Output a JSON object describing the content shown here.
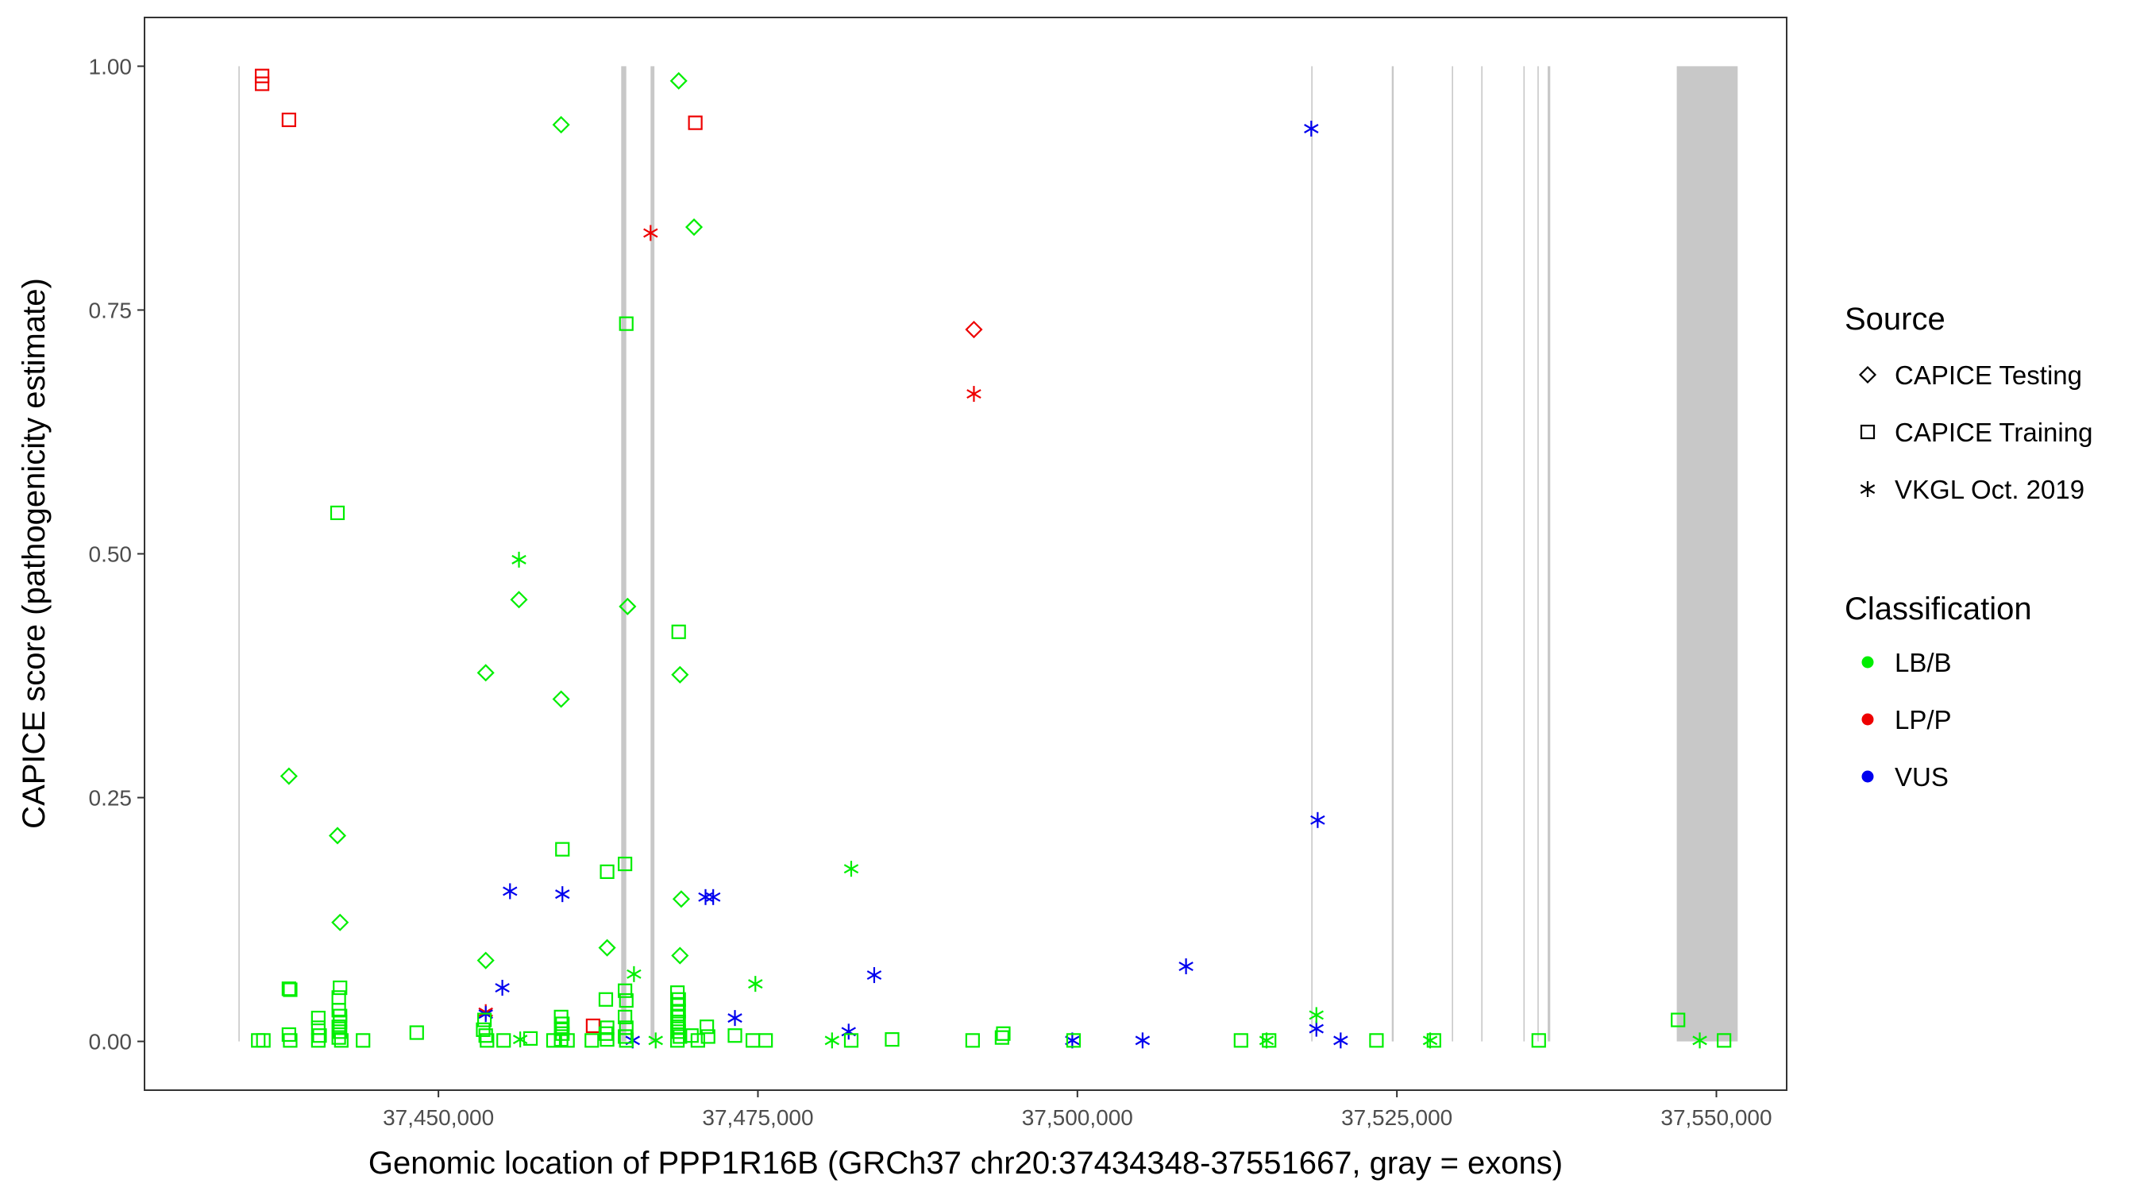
{
  "chart_data": {
    "type": "scatter",
    "xlabel": "Genomic location of PPP1R16B (GRCh37 chr20:37434348-37551667, gray = exons)",
    "ylabel": "CAPICE score (pathogenicity estimate)",
    "xlim": [
      37427000,
      37555500
    ],
    "ylim": [
      -0.05,
      1.05
    ],
    "x_ticks": [
      37450000,
      37475000,
      37500000,
      37525000,
      37550000
    ],
    "x_tick_labels": [
      "37,450,000",
      "37,475,000",
      "37,500,000",
      "37,525,000",
      "37,550,000"
    ],
    "y_ticks": [
      0,
      0.25,
      0.5,
      0.75,
      1.0
    ],
    "y_tick_labels": [
      "0.00",
      "0.25",
      "0.50",
      "0.75",
      "1.00"
    ],
    "grid": false,
    "exons": [
      [
        37434348,
        37434450
      ],
      [
        37464300,
        37464700
      ],
      [
        37466600,
        37466900
      ],
      [
        37518300,
        37518400
      ],
      [
        37524600,
        37524750
      ],
      [
        37529300,
        37529400
      ],
      [
        37531600,
        37531700
      ],
      [
        37534900,
        37535000
      ],
      [
        37536000,
        37536100
      ],
      [
        37536800,
        37537000
      ],
      [
        37546900,
        37551667
      ]
    ],
    "legend": {
      "source_title": "Source",
      "classification_title": "Classification",
      "sources": [
        {
          "key": "testing",
          "label": "CAPICE Testing",
          "shape": "diamond"
        },
        {
          "key": "training",
          "label": "CAPICE Training",
          "shape": "square"
        },
        {
          "key": "vkgl",
          "label": "VKGL Oct. 2019",
          "shape": "asterisk"
        }
      ],
      "classes": [
        {
          "key": "LB/B",
          "label": "LB/B",
          "color": "#00ee00"
        },
        {
          "key": "LP/P",
          "label": "LP/P",
          "color": "#ee0000"
        },
        {
          "key": "VUS",
          "label": "VUS",
          "color": "#0000ee"
        }
      ],
      "position": "right"
    },
    "series": [
      {
        "source": "training",
        "class": "LP/P",
        "points": [
          [
            37436200,
            0.99
          ],
          [
            37436200,
            0.982
          ],
          [
            37438300,
            0.945
          ],
          [
            37470100,
            0.942
          ],
          [
            37462100,
            0.016
          ]
        ]
      },
      {
        "source": "testing",
        "class": "LP/P",
        "points": [
          [
            37491900,
            0.73
          ]
        ]
      },
      {
        "source": "vkgl",
        "class": "LP/P",
        "points": [
          [
            37466600,
            0.829
          ],
          [
            37491900,
            0.664
          ],
          [
            37453700,
            0.03
          ]
        ]
      },
      {
        "source": "vkgl",
        "class": "VUS",
        "points": [
          [
            37518300,
            0.936
          ],
          [
            37518800,
            0.227
          ],
          [
            37455600,
            0.154
          ],
          [
            37459700,
            0.151
          ],
          [
            37470900,
            0.148
          ],
          [
            37471500,
            0.148
          ],
          [
            37508500,
            0.077
          ],
          [
            37484100,
            0.068
          ],
          [
            37455000,
            0.055
          ],
          [
            37473200,
            0.024
          ],
          [
            37453700,
            0.028
          ],
          [
            37482100,
            0.01
          ],
          [
            37518700,
            0.013
          ],
          [
            37465200,
            0.001
          ],
          [
            37499600,
            0.001
          ],
          [
            37505100,
            0.001
          ],
          [
            37520600,
            0.001
          ]
        ]
      },
      {
        "source": "testing",
        "class": "LB/B",
        "points": [
          [
            37468800,
            0.985
          ],
          [
            37459600,
            0.94
          ],
          [
            37470000,
            0.835
          ],
          [
            37456300,
            0.453
          ],
          [
            37464800,
            0.446
          ],
          [
            37453700,
            0.378
          ],
          [
            37468900,
            0.376
          ],
          [
            37459600,
            0.351
          ],
          [
            37438300,
            0.272
          ],
          [
            37442100,
            0.211
          ],
          [
            37469000,
            0.146
          ],
          [
            37442300,
            0.122
          ],
          [
            37463200,
            0.096
          ],
          [
            37468900,
            0.088
          ],
          [
            37453700,
            0.083
          ]
        ]
      },
      {
        "source": "vkgl",
        "class": "LB/B",
        "points": [
          [
            37456300,
            0.494
          ],
          [
            37482300,
            0.177
          ],
          [
            37465300,
            0.069
          ],
          [
            37474800,
            0.059
          ],
          [
            37518700,
            0.027
          ],
          [
            37456400,
            0.002
          ],
          [
            37467000,
            0.001
          ],
          [
            37480800,
            0.001
          ],
          [
            37514800,
            0.001
          ],
          [
            37527600,
            0.001
          ],
          [
            37548700,
            0.001
          ]
        ]
      },
      {
        "source": "training",
        "class": "LB/B",
        "points": [
          [
            37464700,
            0.736
          ],
          [
            37442100,
            0.542
          ],
          [
            37468800,
            0.42
          ],
          [
            37459700,
            0.197
          ],
          [
            37464600,
            0.182
          ],
          [
            37463200,
            0.174
          ],
          [
            37438300,
            0.054
          ],
          [
            37438400,
            0.053
          ],
          [
            37442300,
            0.055
          ],
          [
            37442200,
            0.045
          ],
          [
            37442200,
            0.032
          ],
          [
            37442300,
            0.026
          ],
          [
            37442300,
            0.02
          ],
          [
            37442200,
            0.015
          ],
          [
            37442300,
            0.01
          ],
          [
            37442200,
            0.004
          ],
          [
            37442400,
            0.001
          ],
          [
            37453600,
            0.022
          ],
          [
            37453500,
            0.012
          ],
          [
            37453700,
            0.006
          ],
          [
            37453800,
            0.001
          ],
          [
            37455100,
            0.001
          ],
          [
            37457200,
            0.003
          ],
          [
            37459600,
            0.025
          ],
          [
            37459700,
            0.018
          ],
          [
            37459600,
            0.013
          ],
          [
            37459700,
            0.008
          ],
          [
            37459600,
            0.002
          ],
          [
            37459000,
            0.001
          ],
          [
            37460100,
            0.001
          ],
          [
            37462000,
            0.001
          ],
          [
            37463100,
            0.043
          ],
          [
            37463200,
            0.014
          ],
          [
            37463100,
            0.008
          ],
          [
            37463200,
            0.002
          ],
          [
            37464600,
            0.052
          ],
          [
            37464700,
            0.042
          ],
          [
            37464600,
            0.025
          ],
          [
            37464700,
            0.014
          ],
          [
            37464600,
            0.005
          ],
          [
            37464700,
            0.001
          ],
          [
            37468700,
            0.05
          ],
          [
            37468800,
            0.043
          ],
          [
            37468700,
            0.038
          ],
          [
            37468800,
            0.031
          ],
          [
            37468700,
            0.026
          ],
          [
            37468800,
            0.02
          ],
          [
            37468700,
            0.015
          ],
          [
            37468800,
            0.01
          ],
          [
            37468900,
            0.005
          ],
          [
            37468700,
            0.001
          ],
          [
            37469800,
            0.006
          ],
          [
            37470300,
            0.001
          ],
          [
            37471000,
            0.015
          ],
          [
            37471100,
            0.005
          ],
          [
            37473200,
            0.006
          ],
          [
            37474600,
            0.001
          ],
          [
            37475600,
            0.001
          ],
          [
            37482300,
            0.001
          ],
          [
            37485500,
            0.002
          ],
          [
            37491800,
            0.001
          ],
          [
            37494100,
            0.004
          ],
          [
            37494200,
            0.008
          ],
          [
            37499700,
            0.001
          ],
          [
            37512800,
            0.001
          ],
          [
            37515000,
            0.001
          ],
          [
            37523400,
            0.001
          ],
          [
            37527900,
            0.001
          ],
          [
            37536100,
            0.001
          ],
          [
            37547000,
            0.022
          ],
          [
            37550600,
            0.001
          ],
          [
            37436300,
            0.001
          ],
          [
            37435900,
            0.001
          ],
          [
            37438300,
            0.007
          ],
          [
            37438400,
            0.001
          ],
          [
            37440600,
            0.024
          ],
          [
            37440600,
            0.014
          ],
          [
            37440700,
            0.006
          ],
          [
            37440600,
            0.001
          ],
          [
            37444100,
            0.001
          ],
          [
            37448300,
            0.009
          ]
        ]
      }
    ]
  }
}
